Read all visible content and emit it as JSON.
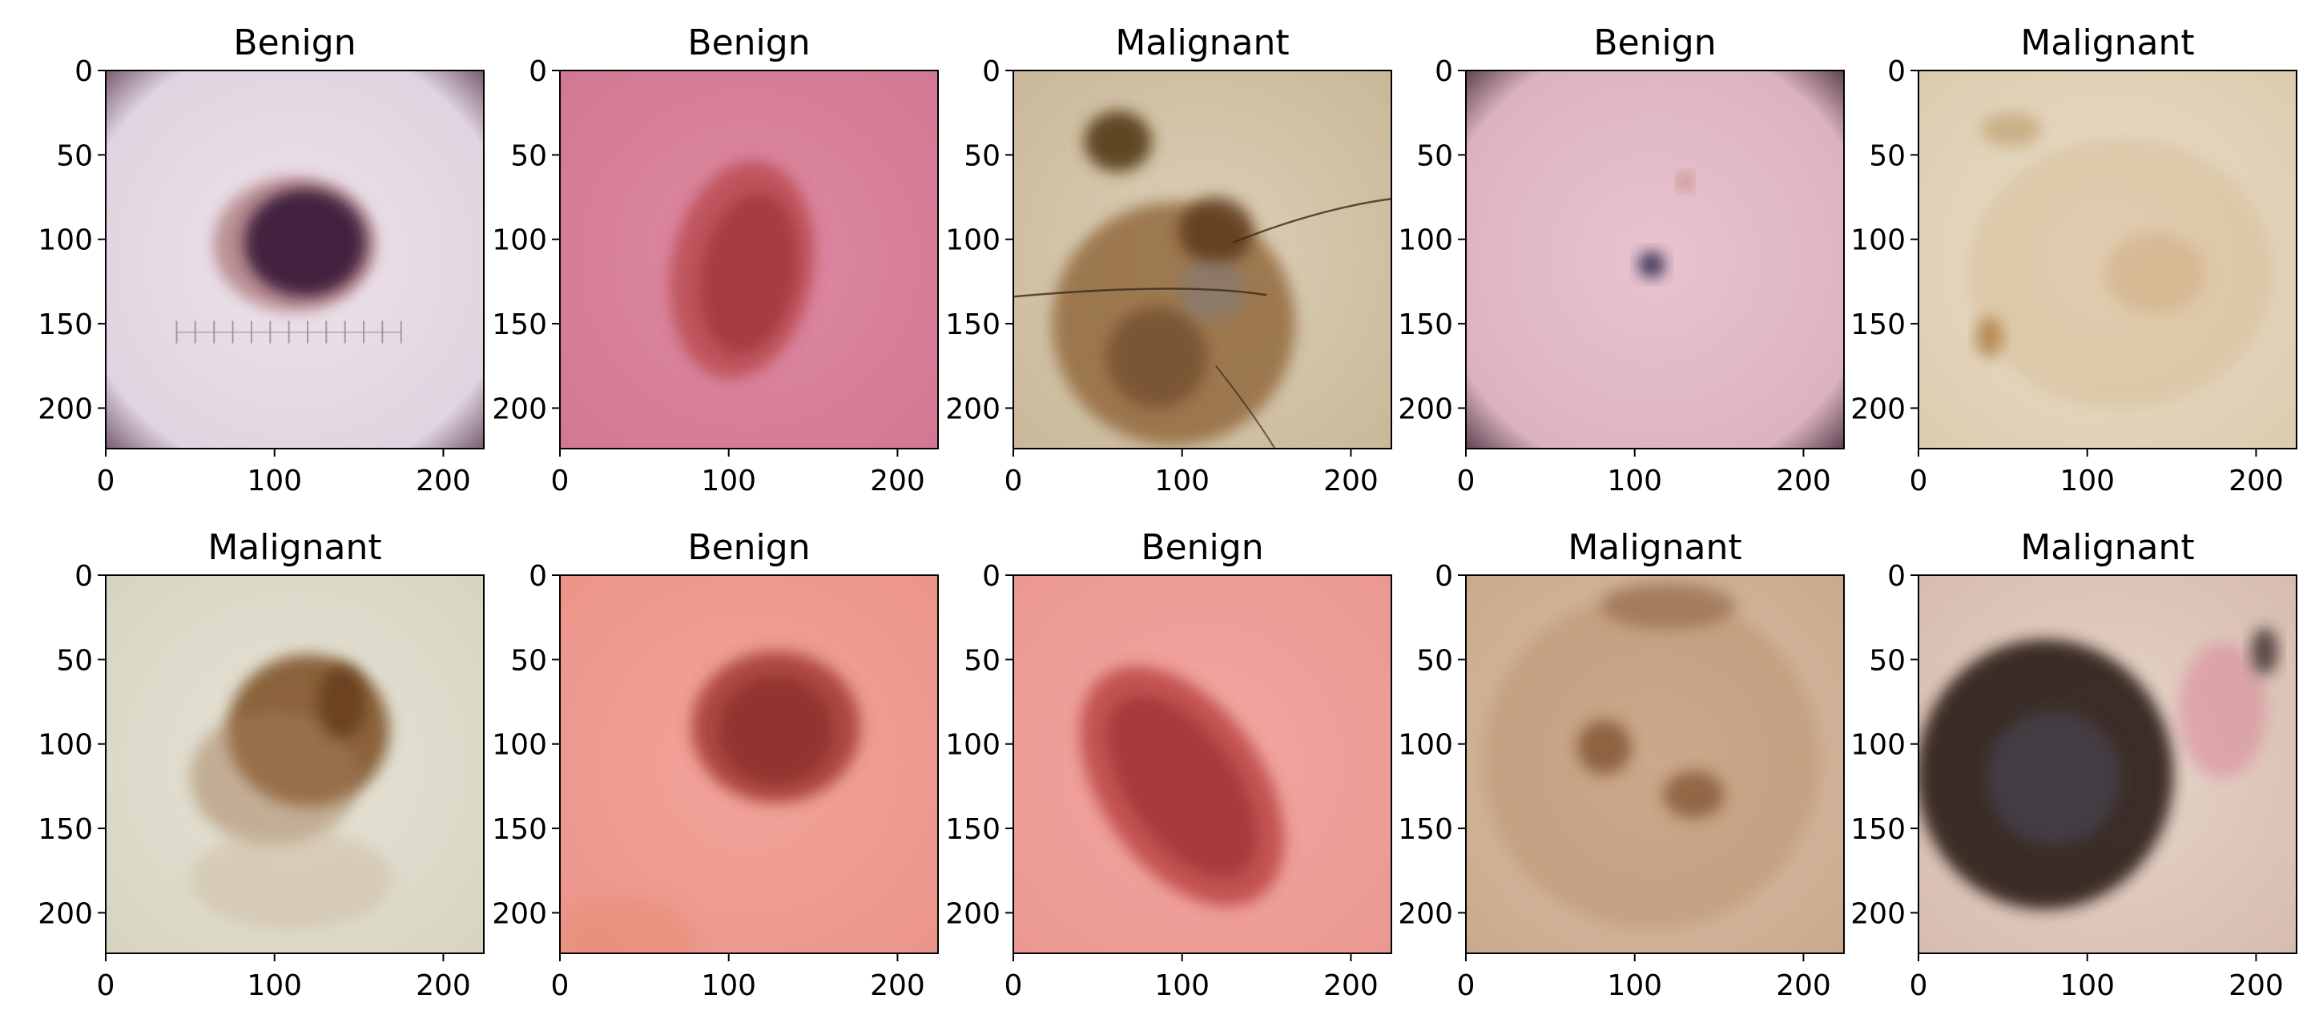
{
  "figure": {
    "background": "#ffffff",
    "tick_color": "#000000",
    "frame_color": "#000000"
  },
  "axes_common": {
    "x_ticks": [
      0,
      100,
      200
    ],
    "y_ticks": [
      0,
      50,
      100,
      150,
      200
    ],
    "x_range": [
      0,
      224
    ],
    "y_range": [
      224,
      0
    ],
    "image_size": 224
  },
  "panels": [
    {
      "title": "Benign",
      "image": {
        "type": "lesion",
        "skin": "#eee4ec",
        "skin_edge": "#ddd0dd",
        "vignette": "#5a3a50",
        "blobs": [
          {
            "cx": 112,
            "cy": 103,
            "rx": 48,
            "ry": 40,
            "color": "#9a5a5a",
            "opacity": 0.6,
            "rot": 0
          },
          {
            "cx": 118,
            "cy": 102,
            "rx": 36,
            "ry": 32,
            "color": "#3e1b3a",
            "opacity": 0.95,
            "rot": 0
          }
        ],
        "ruler": true
      }
    },
    {
      "title": "Benign",
      "image": {
        "type": "lesion",
        "skin": "#de8aa2",
        "skin_edge": "#d27892",
        "vignette": "",
        "blobs": [
          {
            "cx": 108,
            "cy": 118,
            "rx": 42,
            "ry": 65,
            "color": "#b8484e",
            "opacity": 0.8,
            "rot": 10
          },
          {
            "cx": 112,
            "cy": 120,
            "rx": 28,
            "ry": 48,
            "color": "#9c3038",
            "opacity": 0.7,
            "rot": 10
          }
        ],
        "ruler": false
      }
    },
    {
      "title": "Malignant",
      "image": {
        "type": "lesion",
        "skin": "#ddd0b8",
        "skin_edge": "#c9b899",
        "vignette": "",
        "blobs": [
          {
            "cx": 62,
            "cy": 42,
            "rx": 20,
            "ry": 18,
            "color": "#4e3010",
            "opacity": 0.85,
            "rot": 0
          },
          {
            "cx": 95,
            "cy": 150,
            "rx": 72,
            "ry": 72,
            "color": "#8f6538",
            "opacity": 0.8,
            "rot": 0
          },
          {
            "cx": 120,
            "cy": 95,
            "rx": 22,
            "ry": 20,
            "color": "#5a3415",
            "opacity": 0.8,
            "rot": 0
          },
          {
            "cx": 85,
            "cy": 170,
            "rx": 30,
            "ry": 30,
            "color": "#6e4a2c",
            "opacity": 0.7,
            "rot": 0
          },
          {
            "cx": 118,
            "cy": 130,
            "rx": 20,
            "ry": 18,
            "color": "#7e7a80",
            "opacity": 0.5,
            "rot": 0
          }
        ],
        "ruler": false,
        "hairs": true
      }
    },
    {
      "title": "Benign",
      "image": {
        "type": "lesion",
        "skin": "#e9c4d0",
        "skin_edge": "#d8aebd",
        "vignette": "#3a2430",
        "blobs": [
          {
            "cx": 110,
            "cy": 115,
            "rx": 8,
            "ry": 8,
            "color": "#3b3458",
            "opacity": 0.95,
            "rot": 0
          },
          {
            "cx": 130,
            "cy": 66,
            "rx": 4,
            "ry": 5,
            "color": "#b47a60",
            "opacity": 0.8,
            "rot": 0
          }
        ],
        "ruler": false
      }
    },
    {
      "title": "Malignant",
      "image": {
        "type": "lesion",
        "skin": "#eadfcc",
        "skin_edge": "#dccbae",
        "vignette": "",
        "blobs": [
          {
            "cx": 120,
            "cy": 120,
            "rx": 90,
            "ry": 80,
            "color": "#d6b890",
            "opacity": 0.45,
            "rot": 0
          },
          {
            "cx": 55,
            "cy": 35,
            "rx": 18,
            "ry": 10,
            "color": "#bb9a66",
            "opacity": 0.6,
            "rot": 0
          },
          {
            "cx": 42,
            "cy": 158,
            "rx": 8,
            "ry": 12,
            "color": "#b38450",
            "opacity": 0.9,
            "rot": 0
          },
          {
            "cx": 140,
            "cy": 120,
            "rx": 30,
            "ry": 24,
            "color": "#cfa87a",
            "opacity": 0.5,
            "rot": 0
          }
        ],
        "ruler": false
      }
    },
    {
      "title": "Malignant",
      "image": {
        "type": "lesion",
        "skin": "#e6e4d8",
        "skin_edge": "#d8d4c2",
        "vignette": "",
        "blobs": [
          {
            "cx": 120,
            "cy": 92,
            "rx": 48,
            "ry": 45,
            "color": "#7c4e22",
            "opacity": 0.85,
            "rot": 0
          },
          {
            "cx": 100,
            "cy": 120,
            "rx": 50,
            "ry": 40,
            "color": "#a37c58",
            "opacity": 0.5,
            "rot": 0
          },
          {
            "cx": 140,
            "cy": 75,
            "rx": 14,
            "ry": 22,
            "color": "#5e3416",
            "opacity": 0.7,
            "rot": 0
          },
          {
            "cx": 110,
            "cy": 180,
            "rx": 60,
            "ry": 30,
            "color": "#c9b498",
            "opacity": 0.4,
            "rot": 0
          }
        ],
        "ruler": false
      }
    },
    {
      "title": "Benign",
      "image": {
        "type": "lesion",
        "skin": "#f2a49a",
        "skin_edge": "#eb948a",
        "vignette": "",
        "blobs": [
          {
            "cx": 128,
            "cy": 90,
            "rx": 50,
            "ry": 45,
            "color": "#a23a34",
            "opacity": 0.85,
            "rot": 0
          },
          {
            "cx": 128,
            "cy": 92,
            "rx": 34,
            "ry": 32,
            "color": "#862a28",
            "opacity": 0.7,
            "rot": 0
          },
          {
            "cx": 40,
            "cy": 215,
            "rx": 40,
            "ry": 25,
            "color": "#e68e72",
            "opacity": 0.5,
            "rot": 0
          }
        ],
        "ruler": false
      }
    },
    {
      "title": "Benign",
      "image": {
        "type": "lesion",
        "skin": "#f2a6a0",
        "skin_edge": "#eb9892",
        "vignette": "",
        "blobs": [
          {
            "cx": 100,
            "cy": 125,
            "rx": 48,
            "ry": 80,
            "color": "#b84040",
            "opacity": 0.8,
            "rot": -35
          },
          {
            "cx": 100,
            "cy": 125,
            "rx": 32,
            "ry": 62,
            "color": "#9e2e30",
            "opacity": 0.7,
            "rot": -35
          }
        ],
        "ruler": false
      }
    },
    {
      "title": "Malignant",
      "image": {
        "type": "lesion",
        "skin": "#dcc0a8",
        "skin_edge": "#c9aa8e",
        "vignette": "",
        "blobs": [
          {
            "cx": 110,
            "cy": 110,
            "rx": 100,
            "ry": 100,
            "color": "#b68c68",
            "opacity": 0.45,
            "rot": 0
          },
          {
            "cx": 82,
            "cy": 102,
            "rx": 16,
            "ry": 16,
            "color": "#7a4e2c",
            "opacity": 0.75,
            "rot": 0
          },
          {
            "cx": 135,
            "cy": 130,
            "rx": 18,
            "ry": 14,
            "color": "#7a4e2c",
            "opacity": 0.7,
            "rot": 0
          },
          {
            "cx": 120,
            "cy": 18,
            "rx": 40,
            "ry": 14,
            "color": "#8e6444",
            "opacity": 0.6,
            "rot": 0
          }
        ],
        "ruler": false
      }
    },
    {
      "title": "Malignant",
      "image": {
        "type": "lesion",
        "skin": "#e8d6cc",
        "skin_edge": "#d6bcae",
        "vignette": "",
        "blobs": [
          {
            "cx": 75,
            "cy": 118,
            "rx": 76,
            "ry": 80,
            "color": "#2a1c18",
            "opacity": 0.9,
            "rot": 0
          },
          {
            "cx": 80,
            "cy": 120,
            "rx": 40,
            "ry": 40,
            "color": "#4a4a5c",
            "opacity": 0.55,
            "rot": 0
          },
          {
            "cx": 180,
            "cy": 80,
            "rx": 26,
            "ry": 40,
            "color": "#d87890",
            "opacity": 0.45,
            "rot": 0
          },
          {
            "cx": 205,
            "cy": 45,
            "rx": 8,
            "ry": 14,
            "color": "#3a2a2a",
            "opacity": 0.8,
            "rot": 0
          }
        ],
        "ruler": false
      }
    }
  ]
}
